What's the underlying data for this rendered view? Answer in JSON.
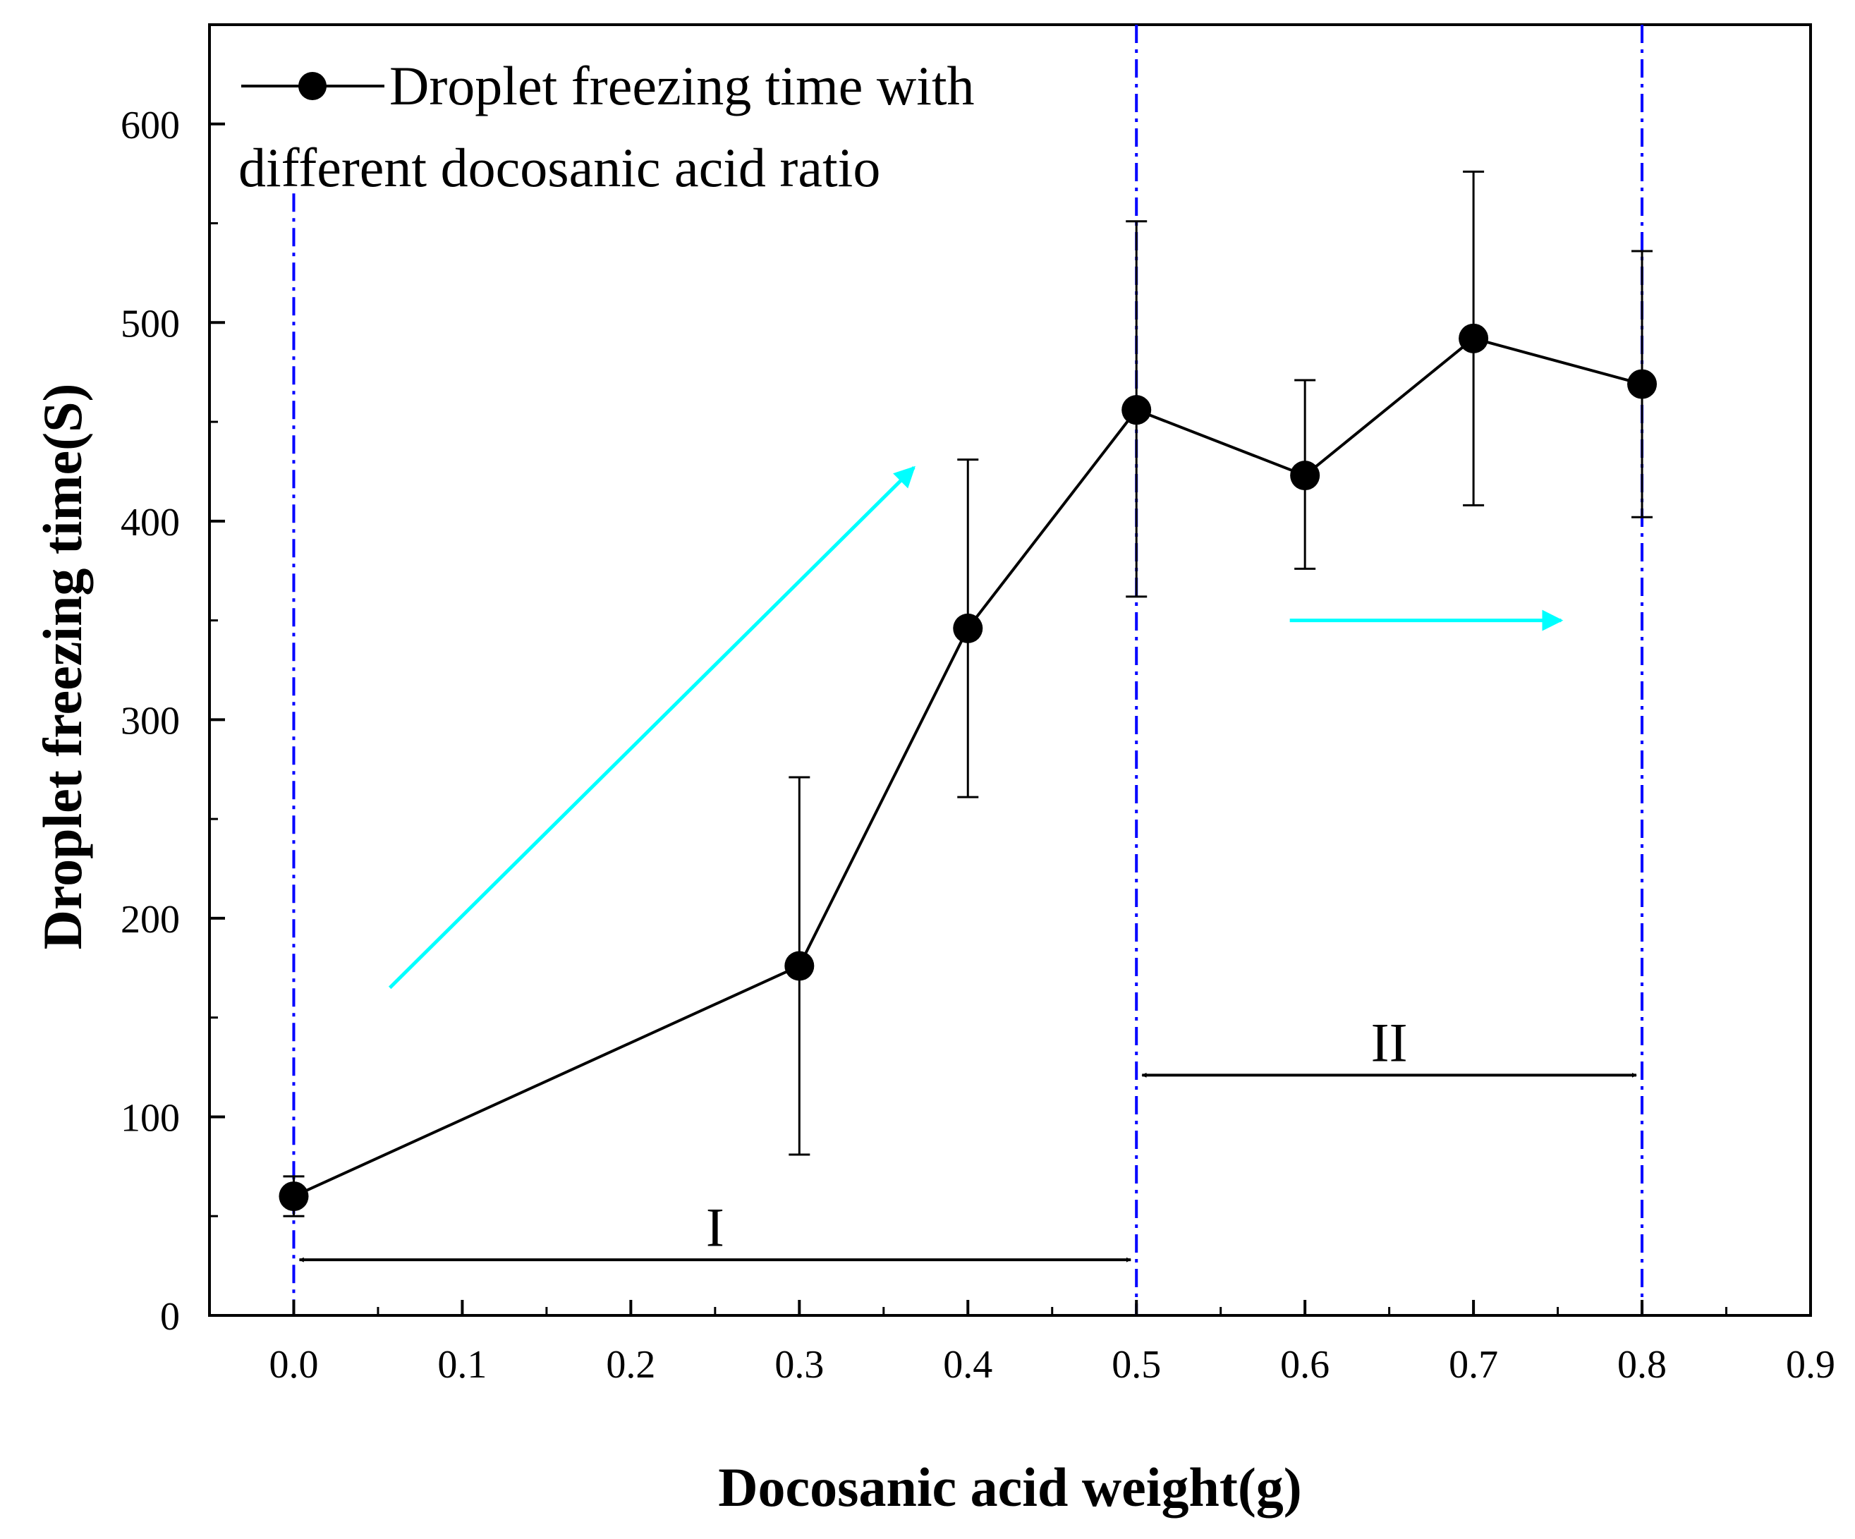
{
  "chart_data": {
    "type": "line",
    "title": "",
    "xlabel": "Docosanic acid weight(g)",
    "ylabel": "Droplet freezing time(S)",
    "xlim": [
      -0.05,
      0.9
    ],
    "ylim": [
      0,
      650
    ],
    "xticks": [
      0.0,
      0.1,
      0.2,
      0.3,
      0.4,
      0.5,
      0.6,
      0.7,
      0.8,
      0.9
    ],
    "xtick_labels": [
      "0.0",
      "0.1",
      "0.2",
      "0.3",
      "0.4",
      "0.5",
      "0.6",
      "0.7",
      "0.8",
      "0.9"
    ],
    "yticks": [
      0,
      100,
      200,
      300,
      400,
      500,
      600
    ],
    "ytick_labels": [
      "0",
      "100",
      "200",
      "300",
      "400",
      "500",
      "600"
    ],
    "grid": false,
    "legend": {
      "placement": "top-left",
      "line1": "Droplet freezing time with",
      "line2": "different docosanic acid ratio"
    },
    "series": [
      {
        "name": "Droplet freezing time with different docosanic acid ratio",
        "color": "#000000",
        "x": [
          0.0,
          0.3,
          0.4,
          0.5,
          0.6,
          0.7,
          0.8
        ],
        "y": [
          60,
          176,
          346,
          456,
          423,
          492,
          469
        ],
        "err_low": [
          50,
          81,
          261,
          362,
          376,
          408,
          402
        ],
        "err_high": [
          70,
          271,
          431,
          551,
          471,
          576,
          536
        ]
      }
    ],
    "vlines": [
      {
        "x": 0.0,
        "color": "#0000ff",
        "style": "dash-dot",
        "y_top": 565
      },
      {
        "x": 0.5,
        "color": "#0000ff",
        "style": "dash-dot",
        "y_top": 650
      },
      {
        "x": 0.8,
        "color": "#0000ff",
        "style": "dash-dot",
        "y_top": 650
      }
    ],
    "regions": [
      {
        "label": "I",
        "x_start": 0.0,
        "x_end": 0.5,
        "arrow_y": 28,
        "label_y": 45
      },
      {
        "label": "II",
        "x_start": 0.5,
        "x_end": 0.8,
        "arrow_y": 121,
        "label_y": 138
      }
    ],
    "trend_arrows": [
      {
        "color": "#00ffff",
        "x1": 0.057,
        "y1": 165,
        "x2": 0.368,
        "y2": 427
      },
      {
        "color": "#00ffff",
        "x1": 0.591,
        "y1": 350,
        "x2": 0.752,
        "y2": 350
      }
    ]
  }
}
